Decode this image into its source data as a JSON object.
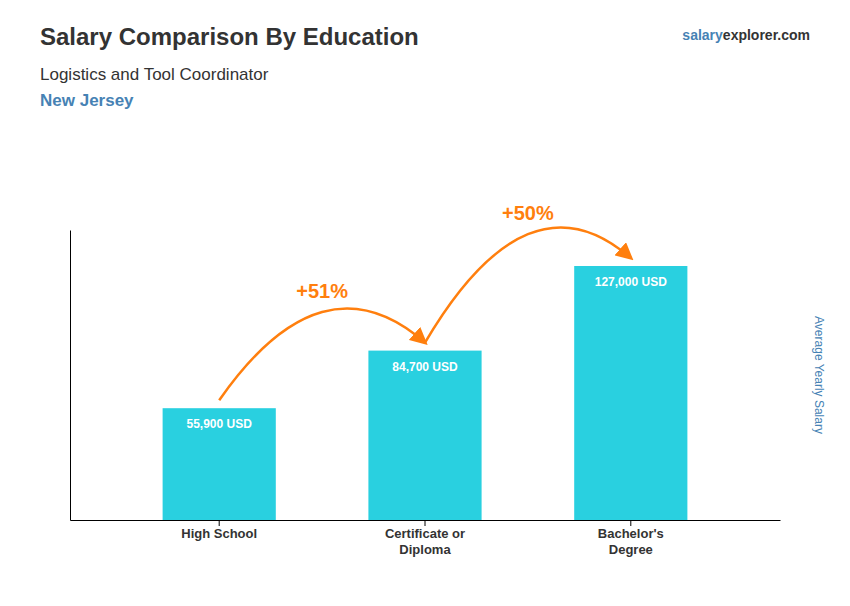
{
  "chart_data": {
    "type": "bar",
    "title": "Salary Comparison By Education",
    "subtitle": "Logistics and Tool Coordinator",
    "location": "New Jersey",
    "watermark": [
      "salary",
      "explorer.com"
    ],
    "y_label": "Average Yearly Salary",
    "categories": [
      "High School",
      "Certificate or\nDiploma",
      "Bachelor's\nDegree"
    ],
    "values": [
      55900,
      84700,
      127000
    ],
    "value_labels": [
      "55,900 USD",
      "84,700 USD",
      "127,000 USD"
    ],
    "data_labels": true,
    "annotations": [
      "+51%",
      "+50%"
    ],
    "color": "#29d0e0",
    "ylim": [
      0,
      145000
    ],
    "grid": false,
    "tick_labels": "x"
  }
}
